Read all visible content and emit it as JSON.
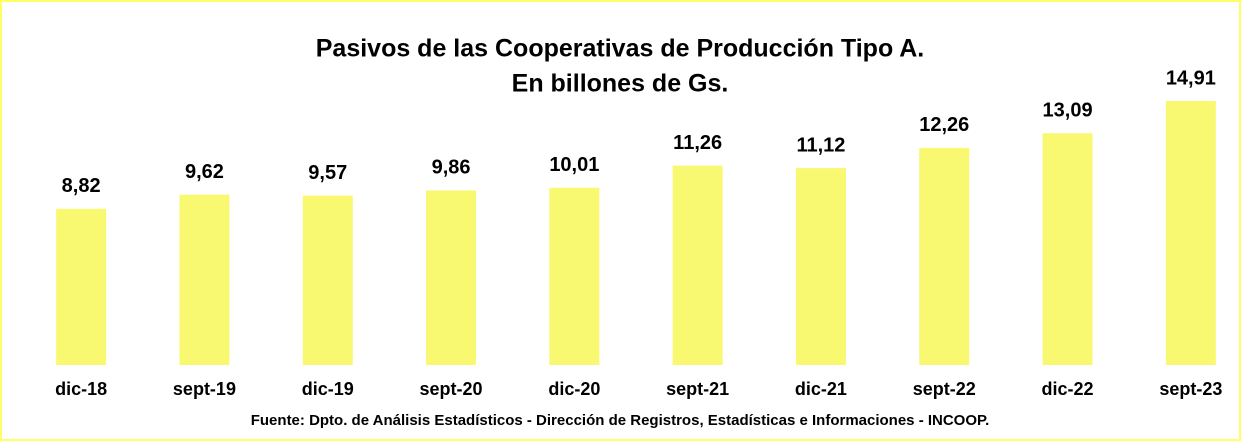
{
  "chart_data": {
    "type": "bar",
    "title": "Pasivos de las Cooperativas de Producción Tipo A.",
    "subtitle": "En billones de Gs.",
    "categories": [
      "dic-18",
      "sept-19",
      "dic-19",
      "sept-20",
      "dic-20",
      "sept-21",
      "dic-21",
      "sept-22",
      "dic-22",
      "sept-23"
    ],
    "values": [
      8.82,
      9.62,
      9.57,
      9.86,
      10.01,
      11.26,
      11.12,
      12.26,
      13.09,
      14.91
    ],
    "value_labels": [
      "8,82",
      "9,62",
      "9,57",
      "9,86",
      "10,01",
      "11,26",
      "11,12",
      "12,26",
      "13,09",
      "14,91"
    ],
    "color": "#f9f871",
    "source": "Fuente: Dpto. de Análisis Estadísticos - Dirección de Registros, Estadísticas e Informaciones - INCOOP."
  }
}
